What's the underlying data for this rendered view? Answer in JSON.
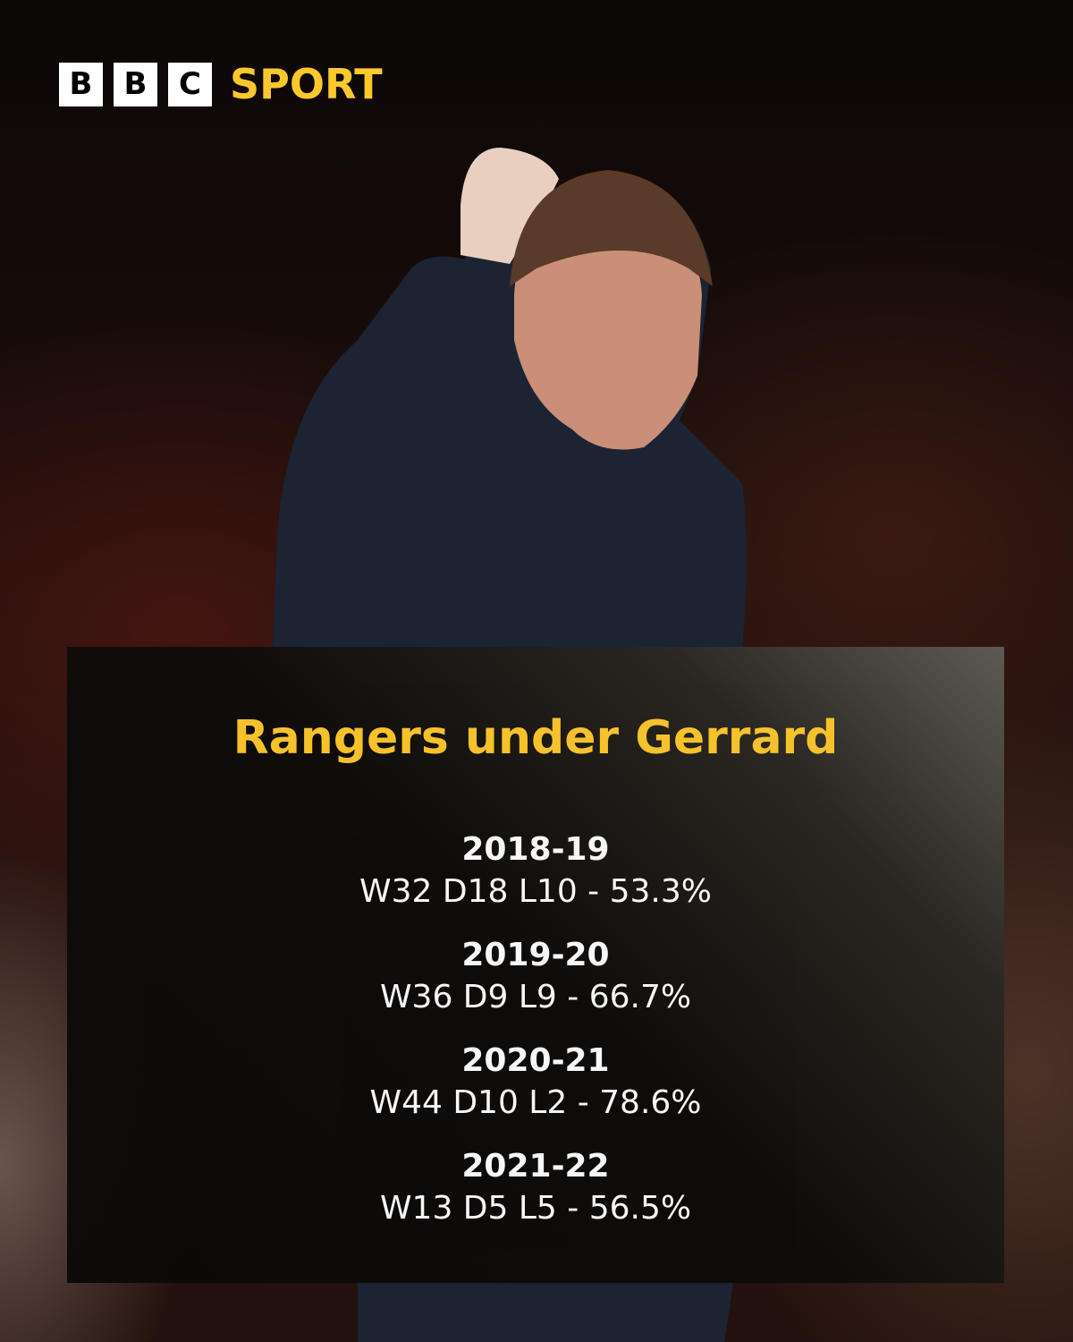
{
  "logo": {
    "letters": [
      "B",
      "B",
      "C"
    ],
    "sport": "SPORT"
  },
  "colors": {
    "accent": "#fdc82c",
    "panel": "#0b0a09",
    "text": "#ffffff"
  },
  "panel": {
    "title": "Rangers under Gerrard",
    "seasons": [
      {
        "season": "2018-19",
        "record": "W32 D18 L10 - 53.3%"
      },
      {
        "season": "2019-20",
        "record": "W36 D9 L9 - 66.7%"
      },
      {
        "season": "2020-21",
        "record": "W44 D10 L2 - 78.6%"
      },
      {
        "season": "2021-22",
        "record": "W13 D5 L5 - 56.5%"
      }
    ]
  }
}
